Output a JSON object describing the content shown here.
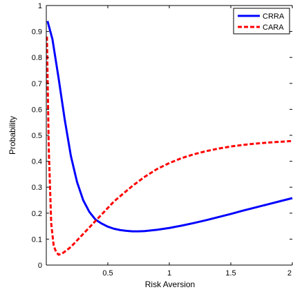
{
  "chart_data": {
    "type": "line",
    "title": "",
    "xlabel": "Risk Aversion",
    "ylabel": "Probability",
    "xlim": [
      0,
      2
    ],
    "ylim": [
      0,
      1
    ],
    "x_ticks": [
      0.5,
      1,
      1.5,
      2
    ],
    "x_tick_labels": [
      "0.5",
      "1",
      "1.5",
      "2"
    ],
    "y_ticks": [
      0,
      0.1,
      0.2,
      0.3,
      0.4,
      0.5,
      0.6,
      0.7,
      0.8,
      0.9,
      1
    ],
    "y_tick_labels": [
      "0",
      "0.1",
      "0.2",
      "0.3",
      "0.4",
      "0.5",
      "0.6",
      "0.7",
      "0.8",
      "0.9",
      "1"
    ],
    "grid": false,
    "legend_position": "top-right",
    "series": [
      {
        "name": "CRRA",
        "color": "#0000ff",
        "style": "solid",
        "x": [
          0.01,
          0.05,
          0.1,
          0.15,
          0.2,
          0.25,
          0.3,
          0.35,
          0.4,
          0.45,
          0.5,
          0.55,
          0.6,
          0.65,
          0.7,
          0.75,
          0.8,
          0.9,
          1.0,
          1.1,
          1.2,
          1.3,
          1.4,
          1.5,
          1.6,
          1.7,
          1.8,
          1.9,
          2.0
        ],
        "y": [
          0.94,
          0.87,
          0.72,
          0.56,
          0.42,
          0.32,
          0.25,
          0.205,
          0.175,
          0.16,
          0.148,
          0.14,
          0.135,
          0.132,
          0.13,
          0.13,
          0.131,
          0.136,
          0.143,
          0.152,
          0.162,
          0.173,
          0.185,
          0.197,
          0.21,
          0.222,
          0.234,
          0.246,
          0.258
        ]
      },
      {
        "name": "CARA",
        "color": "#ff0000",
        "style": "dashed",
        "x": [
          0.005,
          0.02,
          0.04,
          0.06,
          0.08,
          0.1,
          0.13,
          0.16,
          0.2,
          0.25,
          0.3,
          0.35,
          0.4,
          0.45,
          0.5,
          0.55,
          0.6,
          0.7,
          0.8,
          0.9,
          1.0,
          1.1,
          1.2,
          1.3,
          1.4,
          1.5,
          1.6,
          1.7,
          1.8,
          1.9,
          2.0
        ],
        "y": [
          0.88,
          0.45,
          0.16,
          0.075,
          0.05,
          0.04,
          0.045,
          0.055,
          0.07,
          0.095,
          0.12,
          0.145,
          0.17,
          0.195,
          0.22,
          0.245,
          0.265,
          0.305,
          0.34,
          0.37,
          0.393,
          0.412,
          0.427,
          0.439,
          0.449,
          0.457,
          0.463,
          0.468,
          0.472,
          0.475,
          0.478
        ]
      }
    ]
  }
}
